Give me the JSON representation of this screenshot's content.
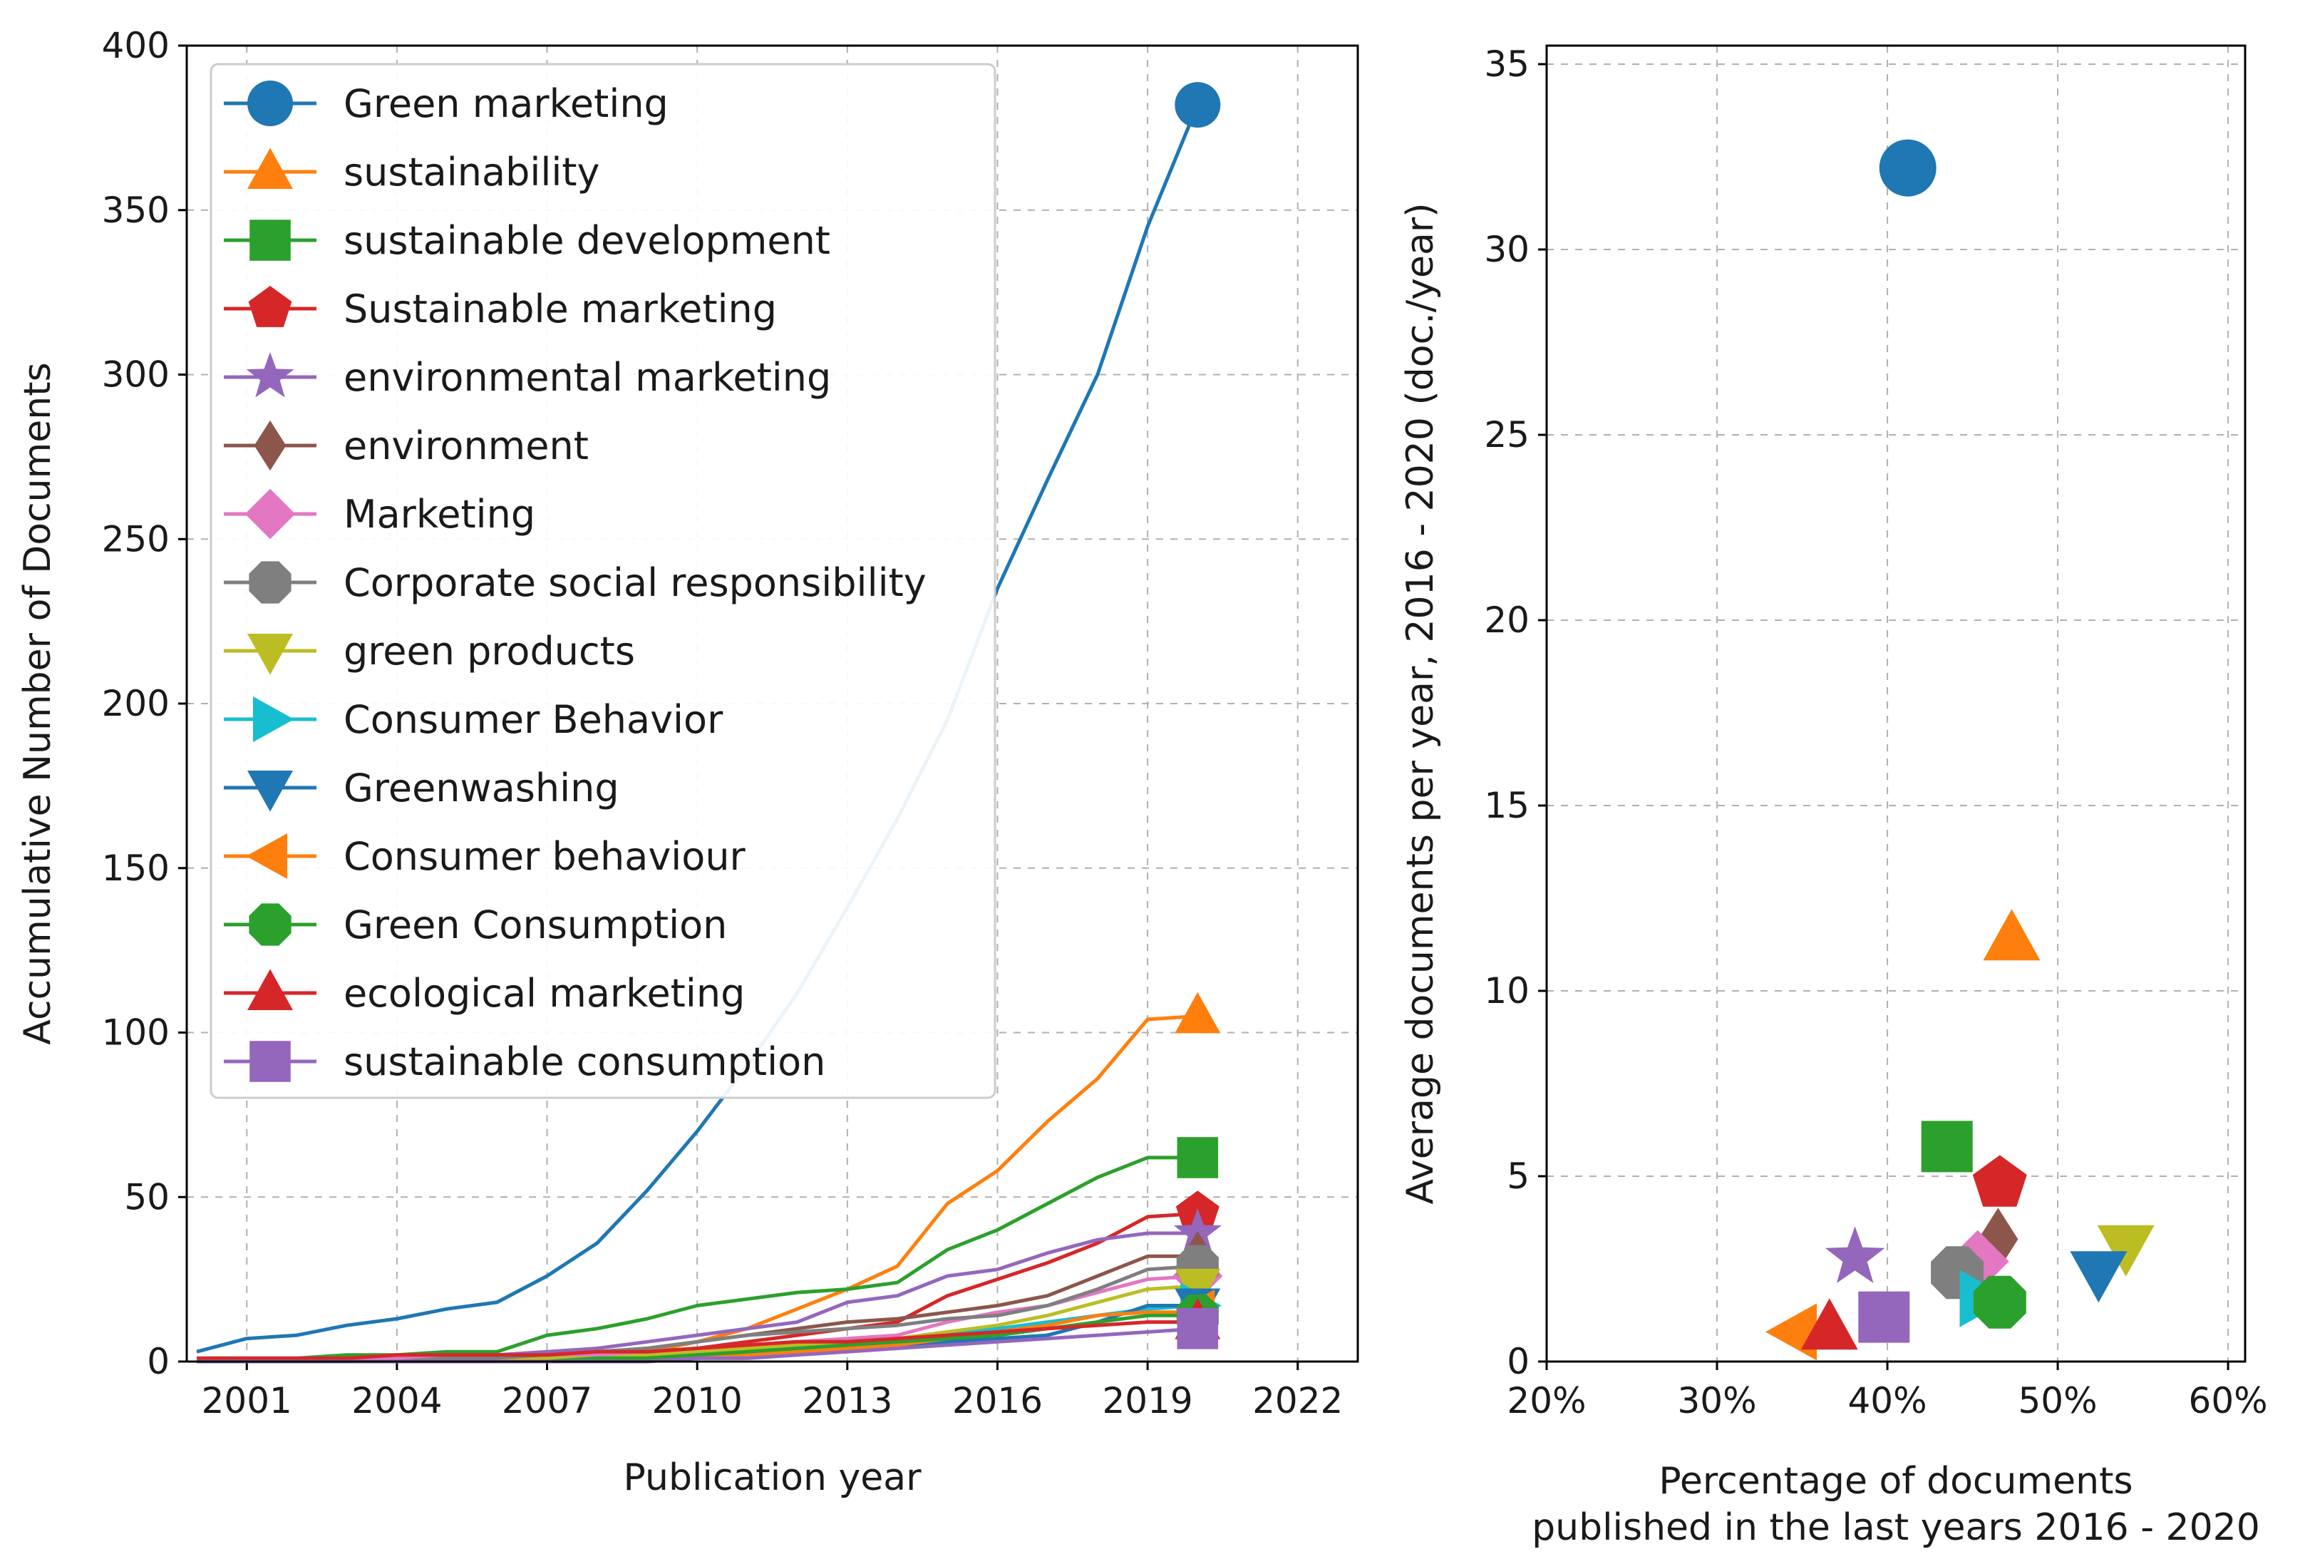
{
  "chart_data": [
    {
      "type": "line",
      "xlabel": "Publication year",
      "ylabel": "Accumulative Number of Documents",
      "xlim": [
        1999.8,
        2023.2
      ],
      "ylim": [
        0,
        400
      ],
      "xticks": [
        2001,
        2004,
        2007,
        2010,
        2013,
        2016,
        2019,
        2022
      ],
      "yticks": [
        0,
        50,
        100,
        150,
        200,
        250,
        300,
        350,
        400
      ],
      "grid": true,
      "legend_position": "top-left",
      "years": [
        2000,
        2001,
        2002,
        2003,
        2004,
        2005,
        2006,
        2007,
        2008,
        2009,
        2010,
        2011,
        2012,
        2013,
        2014,
        2015,
        2016,
        2017,
        2018,
        2019,
        2020
      ],
      "series": [
        {
          "name": "Green marketing",
          "color": "#1f77b4",
          "marker": "circle",
          "values": [
            3,
            7,
            8,
            11,
            13,
            16,
            18,
            26,
            36,
            52,
            70,
            90,
            112,
            138,
            165,
            195,
            235,
            268,
            300,
            345,
            382
          ]
        },
        {
          "name": "sustainability",
          "color": "#ff7f0e",
          "marker": "triangle-up",
          "values": [
            0,
            0,
            0,
            0,
            1,
            1,
            1,
            2,
            2,
            3,
            6,
            10,
            16,
            22,
            29,
            48,
            58,
            73,
            86,
            104,
            105
          ]
        },
        {
          "name": "sustainable development",
          "color": "#2ca02c",
          "marker": "square",
          "values": [
            1,
            1,
            1,
            2,
            2,
            3,
            3,
            8,
            10,
            13,
            17,
            19,
            21,
            22,
            24,
            34,
            40,
            48,
            56,
            62,
            62
          ]
        },
        {
          "name": "Sustainable marketing",
          "color": "#d62728",
          "marker": "pentagon",
          "values": [
            0,
            0,
            0,
            0,
            0,
            1,
            1,
            1,
            2,
            3,
            4,
            6,
            8,
            10,
            12,
            20,
            25,
            30,
            36,
            44,
            45
          ]
        },
        {
          "name": "environmental marketing",
          "color": "#9467bd",
          "marker": "star",
          "values": [
            1,
            1,
            1,
            1,
            2,
            2,
            2,
            3,
            4,
            6,
            8,
            10,
            12,
            18,
            20,
            26,
            28,
            33,
            37,
            39,
            39
          ]
        },
        {
          "name": "environment",
          "color": "#8c564b",
          "marker": "diamond",
          "values": [
            0,
            0,
            0,
            0,
            0,
            1,
            1,
            2,
            3,
            4,
            6,
            8,
            10,
            12,
            13,
            15,
            17,
            20,
            26,
            32,
            32
          ]
        },
        {
          "name": "Marketing",
          "color": "#e377c2",
          "marker": "diamond-wide",
          "values": [
            0,
            0,
            0,
            0,
            1,
            1,
            1,
            2,
            2,
            3,
            4,
            5,
            6,
            7,
            8,
            12,
            15,
            17,
            21,
            25,
            26
          ]
        },
        {
          "name": "Corporate social responsibility",
          "color": "#7f7f7f",
          "marker": "octagon",
          "values": [
            0,
            0,
            0,
            0,
            0,
            1,
            1,
            2,
            3,
            4,
            6,
            8,
            9,
            10,
            11,
            13,
            14,
            17,
            22,
            28,
            29
          ]
        },
        {
          "name": "green products",
          "color": "#bcbd22",
          "marker": "triangle-down",
          "values": [
            0,
            0,
            0,
            0,
            0,
            0,
            0,
            1,
            1,
            2,
            3,
            4,
            5,
            6,
            7,
            9,
            11,
            14,
            18,
            22,
            23
          ]
        },
        {
          "name": "Consumer Behavior",
          "color": "#17becf",
          "marker": "triangle-right",
          "values": [
            0,
            0,
            0,
            0,
            0,
            0,
            0,
            0,
            1,
            1,
            2,
            3,
            4,
            5,
            6,
            8,
            10,
            12,
            14,
            16,
            17
          ]
        },
        {
          "name": "Greenwashing",
          "color": "#1f77b4",
          "marker": "triangle-down",
          "values": [
            0,
            0,
            0,
            0,
            0,
            0,
            0,
            0,
            0,
            1,
            1,
            2,
            3,
            4,
            5,
            6,
            7,
            8,
            12,
            17,
            17
          ]
        },
        {
          "name": "Consumer behaviour",
          "color": "#ff7f0e",
          "marker": "triangle-left",
          "values": [
            0,
            0,
            0,
            0,
            0,
            0,
            0,
            0,
            0,
            1,
            1,
            2,
            3,
            4,
            5,
            7,
            9,
            11,
            14,
            15,
            15
          ]
        },
        {
          "name": "Green Consumption",
          "color": "#2ca02c",
          "marker": "octagon",
          "values": [
            0,
            0,
            0,
            0,
            0,
            0,
            0,
            0,
            1,
            1,
            2,
            3,
            4,
            5,
            6,
            7,
            8,
            10,
            12,
            14,
            14
          ]
        },
        {
          "name": "ecological marketing",
          "color": "#d62728",
          "marker": "triangle-up",
          "values": [
            1,
            1,
            1,
            1,
            2,
            2,
            2,
            2,
            3,
            3,
            4,
            5,
            6,
            6,
            7,
            8,
            9,
            10,
            11,
            12,
            12
          ]
        },
        {
          "name": "sustainable consumption",
          "color": "#9467bd",
          "marker": "square",
          "values": [
            0,
            0,
            0,
            0,
            0,
            0,
            0,
            0,
            0,
            0,
            1,
            1,
            2,
            3,
            4,
            5,
            6,
            7,
            8,
            9,
            10
          ]
        }
      ]
    },
    {
      "type": "scatter",
      "xlabel": "Percentage of documents",
      "xlabel2": "published in the last years 2016 - 2020",
      "ylabel": "Average documents per year, 2016 - 2020 (doc./year)",
      "xlim": [
        20,
        61
      ],
      "ylim": [
        0,
        35.5
      ],
      "xticks": [
        20,
        30,
        40,
        50,
        60
      ],
      "xtick_labels": [
        "20%",
        "30%",
        "40%",
        "50%",
        "60%"
      ],
      "yticks": [
        0,
        5,
        10,
        15,
        20,
        25,
        30,
        35
      ],
      "grid": true,
      "points": [
        {
          "name": "Green marketing",
          "color": "#1f77b4",
          "marker": "circle",
          "x": 41.2,
          "y": 32.2
        },
        {
          "name": "sustainability",
          "color": "#ff7f0e",
          "marker": "triangle-up",
          "x": 47.3,
          "y": 11.4
        },
        {
          "name": "sustainable development",
          "color": "#2ca02c",
          "marker": "square",
          "x": 43.5,
          "y": 5.8
        },
        {
          "name": "Sustainable marketing",
          "color": "#d62728",
          "marker": "pentagon",
          "x": 46.6,
          "y": 4.8
        },
        {
          "name": "environmental marketing",
          "color": "#9467bd",
          "marker": "star",
          "x": 38.1,
          "y": 2.8
        },
        {
          "name": "environment",
          "color": "#8c564b",
          "marker": "diamond",
          "x": 46.5,
          "y": 3.3
        },
        {
          "name": "Marketing",
          "color": "#e377c2",
          "marker": "diamond-wide",
          "x": 45.3,
          "y": 2.7
        },
        {
          "name": "Corporate social responsibility",
          "color": "#7f7f7f",
          "marker": "octagon",
          "x": 44.1,
          "y": 2.4
        },
        {
          "name": "green products",
          "color": "#bcbd22",
          "marker": "triangle-down",
          "x": 54.0,
          "y": 3.1
        },
        {
          "name": "Consumer Behavior",
          "color": "#17becf",
          "marker": "triangle-right",
          "x": 45.5,
          "y": 1.7
        },
        {
          "name": "Greenwashing",
          "color": "#1f77b4",
          "marker": "triangle-down",
          "x": 52.4,
          "y": 2.4
        },
        {
          "name": "Consumer behaviour",
          "color": "#ff7f0e",
          "marker": "triangle-left",
          "x": 34.6,
          "y": 0.8
        },
        {
          "name": "Green Consumption",
          "color": "#2ca02c",
          "marker": "octagon",
          "x": 46.6,
          "y": 1.6
        },
        {
          "name": "ecological marketing",
          "color": "#d62728",
          "marker": "triangle-up",
          "x": 36.6,
          "y": 0.9
        },
        {
          "name": "sustainable consumption",
          "color": "#9467bd",
          "marker": "square",
          "x": 39.8,
          "y": 1.2
        }
      ]
    }
  ]
}
